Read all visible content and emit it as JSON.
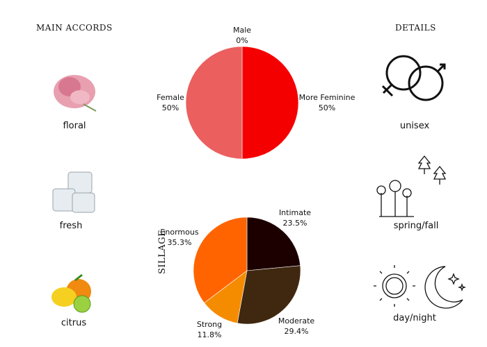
{
  "left": {
    "heading": "MAIN ACCORDS",
    "accords": [
      {
        "label": "floral",
        "icon": "flower-icon"
      },
      {
        "label": "fresh",
        "icon": "ice-cubes-icon"
      },
      {
        "label": "citrus",
        "icon": "citrus-fruit-icon"
      }
    ]
  },
  "right": {
    "heading": "DETAILS",
    "items": [
      {
        "label": "unisex",
        "icon": "gender-icon"
      },
      {
        "label": "spring/fall",
        "icon": "season-icon"
      },
      {
        "label": "day/night",
        "icon": "sun-moon-icon"
      }
    ]
  },
  "chart_data": [
    {
      "type": "pie",
      "title": "",
      "slices": [
        {
          "label": "Male",
          "value": 0,
          "text": "0%",
          "color": "#1f3fbf"
        },
        {
          "label": "More Feminine",
          "value": 50,
          "text": "50%",
          "color": "#f50000"
        },
        {
          "label": "Female",
          "value": 50,
          "text": "50%",
          "color": "#eb5f5f"
        }
      ]
    },
    {
      "type": "pie",
      "title": "SILLAGE",
      "slices": [
        {
          "label": "Intimate",
          "value": 23.5,
          "text": "23.5%",
          "color": "#1c0000"
        },
        {
          "label": "Moderate",
          "value": 29.4,
          "text": "29.4%",
          "color": "#402810"
        },
        {
          "label": "Strong",
          "value": 11.8,
          "text": "11.8%",
          "color": "#f58c00"
        },
        {
          "label": "Enormous",
          "value": 35.3,
          "text": "35.3%",
          "color": "#ff6400"
        }
      ]
    }
  ]
}
